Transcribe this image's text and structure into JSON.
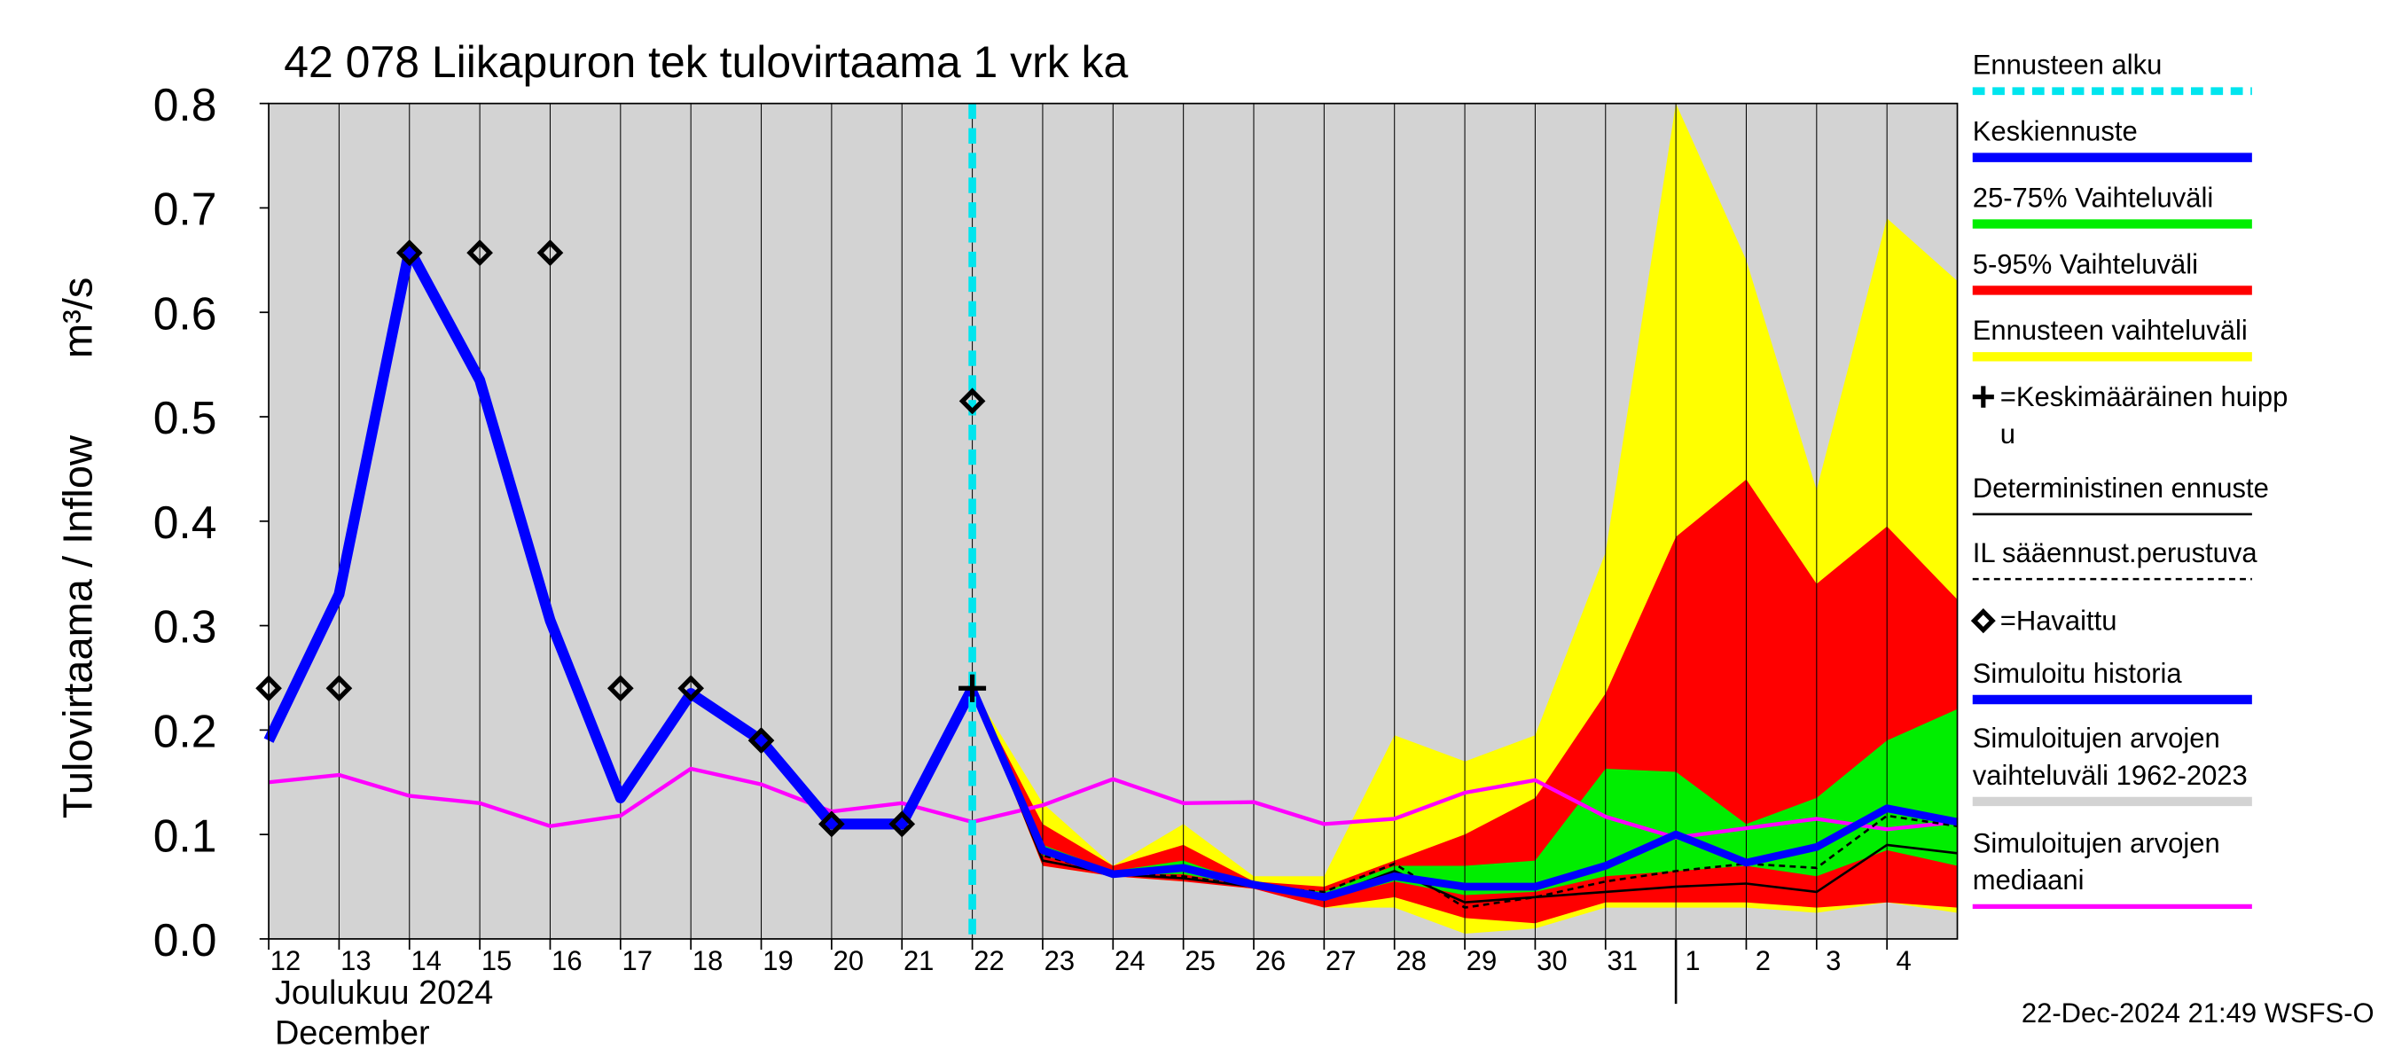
{
  "chart_data": {
    "type": "line",
    "title": "42 078 Liikapuron tek tulovirtaama 1 vrk ka",
    "ylabel": "Tulovirtaama / Inflow",
    "yunit": "m³/s",
    "month_labels": [
      "Joulukuu  2024",
      "December"
    ],
    "footer": "22-Dec-2024 21:49 WSFS-O",
    "background_color": "#d3d3d3",
    "xlim": [
      0,
      24
    ],
    "xticks": [
      {
        "value": 0,
        "label": "12"
      },
      {
        "value": 1,
        "label": "13"
      },
      {
        "value": 2,
        "label": "14"
      },
      {
        "value": 3,
        "label": "15"
      },
      {
        "value": 4,
        "label": "16"
      },
      {
        "value": 5,
        "label": "17"
      },
      {
        "value": 6,
        "label": "18"
      },
      {
        "value": 7,
        "label": "19"
      },
      {
        "value": 8,
        "label": "20"
      },
      {
        "value": 9,
        "label": "21"
      },
      {
        "value": 10,
        "label": "22"
      },
      {
        "value": 11,
        "label": "23"
      },
      {
        "value": 12,
        "label": "24"
      },
      {
        "value": 13,
        "label": "25"
      },
      {
        "value": 14,
        "label": "26"
      },
      {
        "value": 15,
        "label": "27"
      },
      {
        "value": 16,
        "label": "28"
      },
      {
        "value": 17,
        "label": "29"
      },
      {
        "value": 18,
        "label": "30"
      },
      {
        "value": 19,
        "label": "31"
      },
      {
        "value": 20,
        "label": "1"
      },
      {
        "value": 21,
        "label": "2"
      },
      {
        "value": 22,
        "label": "3"
      },
      {
        "value": 23,
        "label": "4"
      }
    ],
    "month_break": 20,
    "forecast_start": 10,
    "ylim": [
      0,
      0.8
    ],
    "yticks": [
      {
        "value": 0,
        "label": "0.0"
      },
      0.1,
      0.2,
      0.3,
      0.4,
      0.5,
      0.6,
      0.7,
      0.8
    ],
    "bands": [
      {
        "color": "#ffff00",
        "x": [
          10,
          11,
          12,
          13,
          14,
          15,
          16,
          17,
          18,
          19,
          20,
          21,
          22,
          23,
          24
        ],
        "low": [
          0.24,
          0.07,
          0.06,
          0.055,
          0.05,
          0.03,
          0.03,
          0.005,
          0.01,
          0.03,
          0.03,
          0.03,
          0.025,
          0.035,
          0.025
        ],
        "high": [
          0.24,
          0.13,
          0.07,
          0.11,
          0.06,
          0.06,
          0.195,
          0.17,
          0.195,
          0.37,
          0.8,
          0.65,
          0.43,
          0.69,
          0.63
        ]
      },
      {
        "color": "#ff0000",
        "x": [
          10,
          11,
          12,
          13,
          14,
          15,
          16,
          17,
          18,
          19,
          20,
          21,
          22,
          23,
          24
        ],
        "low": [
          0.24,
          0.07,
          0.06,
          0.055,
          0.048,
          0.03,
          0.04,
          0.02,
          0.015,
          0.035,
          0.035,
          0.035,
          0.03,
          0.035,
          0.03
        ],
        "high": [
          0.24,
          0.11,
          0.07,
          0.09,
          0.055,
          0.05,
          0.075,
          0.1,
          0.135,
          0.235,
          0.385,
          0.44,
          0.34,
          0.395,
          0.325
        ]
      },
      {
        "color": "#00ee00",
        "x": [
          10,
          11,
          12,
          13,
          14,
          15,
          16,
          17,
          18,
          19,
          20,
          21,
          22,
          23,
          24
        ],
        "low": [
          0.24,
          0.08,
          0.062,
          0.062,
          0.05,
          0.038,
          0.055,
          0.042,
          0.045,
          0.06,
          0.065,
          0.07,
          0.06,
          0.085,
          0.07
        ],
        "high": [
          0.24,
          0.09,
          0.065,
          0.075,
          0.052,
          0.045,
          0.07,
          0.07,
          0.075,
          0.163,
          0.16,
          0.11,
          0.135,
          0.19,
          0.22
        ]
      }
    ],
    "series": [
      {
        "color": "#ff00ff",
        "style": "median",
        "x": [
          0,
          1,
          2,
          3,
          4,
          5,
          6,
          7,
          8,
          9,
          10,
          11,
          12,
          13,
          14,
          15,
          16,
          17,
          18,
          19,
          20,
          21,
          22,
          23,
          24
        ],
        "values": [
          0.15,
          0.157,
          0.137,
          0.13,
          0.108,
          0.118,
          0.163,
          0.148,
          0.122,
          0.13,
          0.112,
          0.128,
          0.153,
          0.13,
          0.131,
          0.11,
          0.115,
          0.14,
          0.152,
          0.117,
          0.097,
          0.106,
          0.115,
          0.105,
          0.112
        ]
      },
      {
        "color": "#000000",
        "style": "dashed",
        "x": [
          10,
          11,
          12,
          13,
          14,
          15,
          16,
          17,
          18,
          19,
          20,
          21,
          22,
          23,
          24
        ],
        "values": [
          0.24,
          0.08,
          0.062,
          0.06,
          0.05,
          0.045,
          0.072,
          0.03,
          0.04,
          0.055,
          0.065,
          0.072,
          0.068,
          0.118,
          0.108
        ]
      },
      {
        "color": "#000000",
        "style": "thin",
        "x": [
          10,
          11,
          12,
          13,
          14,
          15,
          16,
          17,
          18,
          19,
          20,
          21,
          22,
          23,
          24
        ],
        "values": [
          0.24,
          0.075,
          0.062,
          0.058,
          0.05,
          0.04,
          0.065,
          0.035,
          0.04,
          0.045,
          0.05,
          0.053,
          0.045,
          0.09,
          0.082
        ]
      },
      {
        "color": "#0000ff",
        "style": "mean",
        "x": [
          10,
          11,
          12,
          13,
          14,
          15,
          16,
          17,
          18,
          19,
          20,
          21,
          22,
          23,
          24
        ],
        "values": [
          0.24,
          0.085,
          0.062,
          0.068,
          0.052,
          0.04,
          0.06,
          0.05,
          0.05,
          0.07,
          0.1,
          0.073,
          0.088,
          0.125,
          0.112
        ]
      },
      {
        "color": "#0000ff",
        "style": "history",
        "x": [
          0,
          1,
          2,
          3,
          4,
          5,
          6,
          7,
          8,
          9,
          10
        ],
        "values": [
          0.19,
          0.33,
          0.66,
          0.535,
          0.305,
          0.135,
          0.235,
          0.19,
          0.11,
          0.11,
          0.24
        ]
      }
    ],
    "observed": {
      "color": "#000000",
      "x": [
        0,
        1,
        2,
        3,
        4,
        5,
        6,
        7,
        8,
        9,
        10
      ],
      "values": [
        0.24,
        0.24,
        0.657,
        0.657,
        0.657,
        0.24,
        0.24,
        0.19,
        0.11,
        0.11,
        0.515
      ]
    },
    "mean_peak": {
      "x": 10,
      "value": 0.24
    },
    "legend": [
      {
        "lines": [
          "Ennusteen alku"
        ],
        "color": "#00e5ee",
        "swatch": "dashed"
      },
      {
        "lines": [
          "Keskiennuste"
        ],
        "color": "#0000ff",
        "swatch": "line"
      },
      {
        "lines": [
          "25-75% Vaihteluväli"
        ],
        "color": "#00ee00",
        "swatch": "line"
      },
      {
        "lines": [
          "5-95% Vaihteluväli"
        ],
        "color": "#ff0000",
        "swatch": "line"
      },
      {
        "lines": [
          "Ennusteen vaihteluväli"
        ],
        "color": "#ffff00",
        "swatch": "line"
      },
      {
        "lines": [
          "=Keskimääräinen huipp",
          "u"
        ],
        "color": "#000000",
        "swatch": "plus"
      },
      {
        "lines": [
          "Deterministinen ennuste"
        ],
        "color": "#000000",
        "swatch": "thin"
      },
      {
        "lines": [
          "IL sääennust.perustuva"
        ],
        "color": "#000000",
        "swatch": "thindash"
      },
      {
        "lines": [
          "=Havaittu"
        ],
        "color": "#000000",
        "swatch": "diamond"
      },
      {
        "lines": [
          "Simuloitu historia"
        ],
        "color": "#0000ff",
        "swatch": "line"
      },
      {
        "lines": [
          "Simuloitujen arvojen",
          "vaihteluväli 1962-2023"
        ],
        "color": "#d3d3d3",
        "swatch": "line"
      },
      {
        "lines": [
          "Simuloitujen arvojen",
          "mediaani"
        ],
        "color": "#ff00ff",
        "swatch": "median"
      }
    ]
  }
}
